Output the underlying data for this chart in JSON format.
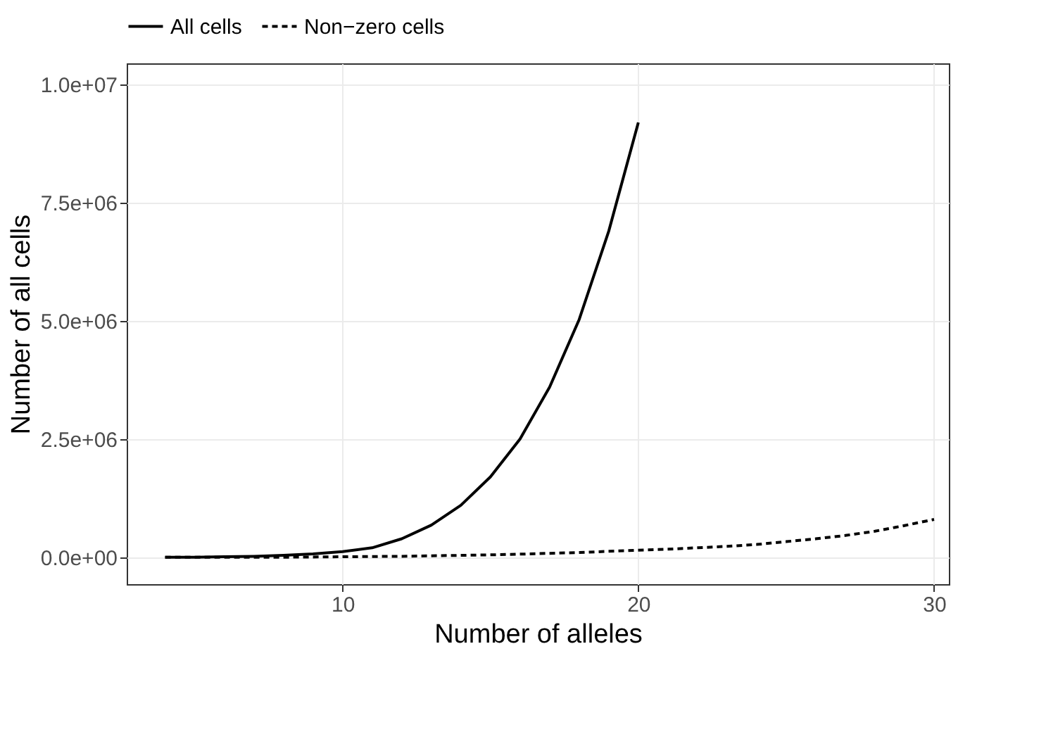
{
  "chart_data": {
    "type": "line",
    "xlabel": "Number of alleles",
    "ylabel": "Number of all cells",
    "legend": "top",
    "grid": true,
    "xlim": [
      2.7,
      30.5
    ],
    "xticks": [
      10,
      20,
      30
    ],
    "ylim": [
      -570000,
      10450000
    ],
    "yticks": [
      {
        "value": 0,
        "label": "0.0e+00"
      },
      {
        "value": 2500000,
        "label": "2.5e+06"
      },
      {
        "value": 5000000,
        "label": "5.0e+06"
      },
      {
        "value": 7500000,
        "label": "7.5e+06"
      },
      {
        "value": 10000000,
        "label": "1.0e+07"
      }
    ],
    "series": [
      {
        "name": "All cells",
        "color": "#000000",
        "line_style": "solid",
        "x": [
          4,
          5,
          6,
          7,
          8,
          9,
          10,
          11,
          12,
          13,
          14,
          15,
          16,
          17,
          18,
          19,
          20
        ],
        "values": [
          0,
          0,
          10000,
          20000,
          40000,
          70000,
          120000,
          200000,
          390000,
          680000,
          1100000,
          1700000,
          2500000,
          3600000,
          5030000,
          6900000,
          9200000
        ]
      },
      {
        "name": "Non−zero cells",
        "color": "#000000",
        "line_style": "dashed",
        "x": [
          4,
          6,
          8,
          10,
          12,
          14,
          15,
          16,
          18,
          20,
          21,
          22,
          23,
          24,
          25,
          26,
          27,
          28,
          29,
          30
        ],
        "values": [
          0,
          0,
          0,
          10000,
          20000,
          40000,
          50000,
          65000,
          100000,
          150000,
          170000,
          200000,
          230000,
          270000,
          330000,
          390000,
          460000,
          550000,
          670000,
          800000
        ]
      }
    ]
  }
}
